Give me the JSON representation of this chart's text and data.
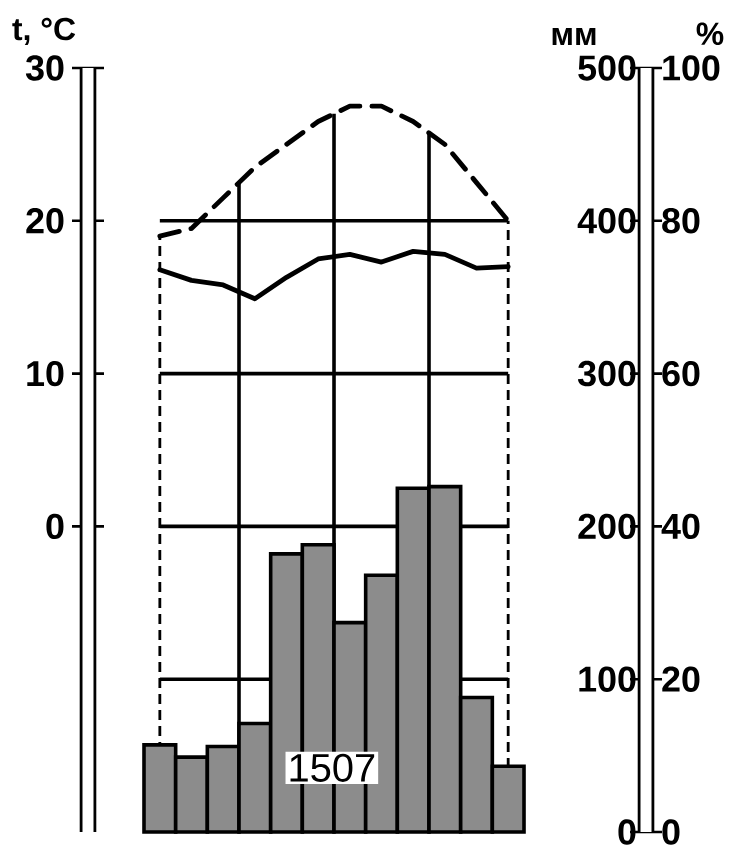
{
  "chart_data": {
    "type": "bar",
    "ylabel": "t, °C",
    "y2label": "мм",
    "y3label": "%",
    "categories": [
      null,
      null,
      null,
      null,
      null,
      null,
      null,
      null,
      null,
      null,
      null,
      null
    ],
    "ylim": [
      -20,
      30
    ],
    "yticks": [
      0,
      10,
      20,
      30
    ],
    "y2lim": [
      0,
      500
    ],
    "y2ticks": [
      0,
      100,
      200,
      300,
      400,
      500
    ],
    "y3lim": [
      0,
      100
    ],
    "y3ticks": [
      0,
      20,
      40,
      60,
      80,
      100
    ],
    "grid": true,
    "marker": "none",
    "annotations": [
      "1507"
    ],
    "series": [
      {
        "axis": "y2",
        "color": "#000000",
        "values": [
          57,
          49,
          56,
          71,
          182,
          188,
          137,
          168,
          225,
          226,
          88,
          43
        ]
      },
      {
        "type": "line",
        "axis": "y",
        "color": "#000000",
        "line_style": "solid",
        "values": [
          16.8,
          16.1,
          15.8,
          14.9,
          16.3,
          17.5,
          17.8,
          17.3,
          18.0,
          17.8,
          16.9,
          17.0
        ]
      },
      {
        "type": "line",
        "axis": "y3",
        "color": "#000000",
        "line_style": "dashed",
        "values": [
          78,
          79,
          83,
          87,
          90,
          93,
          95,
          95,
          93,
          90,
          85,
          80
        ]
      }
    ]
  }
}
